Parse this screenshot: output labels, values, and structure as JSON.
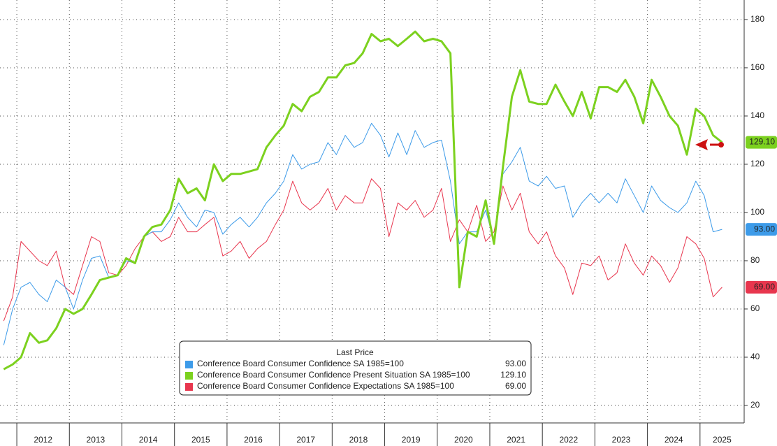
{
  "chart_data": {
    "type": "line",
    "legend_title": "Last Price",
    "x": [
      2011.75,
      2011.92,
      2012.08,
      2012.25,
      2012.42,
      2012.58,
      2012.75,
      2012.92,
      2013.08,
      2013.25,
      2013.42,
      2013.58,
      2013.75,
      2013.92,
      2014.08,
      2014.25,
      2014.42,
      2014.58,
      2014.75,
      2014.92,
      2015.08,
      2015.25,
      2015.42,
      2015.58,
      2015.75,
      2015.92,
      2016.08,
      2016.25,
      2016.42,
      2016.58,
      2016.75,
      2016.92,
      2017.08,
      2017.25,
      2017.42,
      2017.58,
      2017.75,
      2017.92,
      2018.08,
      2018.25,
      2018.42,
      2018.58,
      2018.75,
      2018.92,
      2019.08,
      2019.25,
      2019.42,
      2019.58,
      2019.75,
      2019.92,
      2020.08,
      2020.25,
      2020.42,
      2020.58,
      2020.75,
      2020.92,
      2021.08,
      2021.25,
      2021.42,
      2021.58,
      2021.75,
      2021.92,
      2022.08,
      2022.25,
      2022.42,
      2022.58,
      2022.75,
      2022.92,
      2023.08,
      2023.25,
      2023.42,
      2023.58,
      2023.75,
      2023.92,
      2024.08,
      2024.25,
      2024.42,
      2024.58,
      2024.75,
      2024.92,
      2025.08,
      2025.25,
      2025.42
    ],
    "series": [
      {
        "name": "Conference Board Consumer Confidence SA 1985=100",
        "color": "#3d9be9",
        "width": 1,
        "last": {
          "value": 93,
          "label": "93.00"
        },
        "values": [
          45,
          60,
          69,
          71,
          66,
          63,
          72,
          69,
          60,
          72,
          81,
          82,
          73,
          74,
          80,
          79,
          90,
          92,
          92,
          97,
          104,
          98,
          94,
          101,
          100,
          91,
          95,
          98,
          94,
          98,
          104,
          108,
          113,
          124,
          118,
          120,
          121,
          129,
          124,
          132,
          127,
          129,
          137,
          132,
          123,
          133,
          124,
          134,
          127,
          129,
          130,
          113,
          87,
          92,
          92,
          101,
          88,
          116,
          121,
          127,
          113,
          111,
          115,
          110,
          111,
          98,
          104,
          108,
          104,
          108,
          104,
          114,
          107,
          100,
          111,
          105,
          102,
          100,
          104,
          113,
          107,
          92,
          93
        ]
      },
      {
        "name": "Conference Board Consumer Confidence Present Situation SA 1985=100",
        "color": "#7cd11f",
        "width": 3,
        "last": {
          "value": 129.1,
          "label": "129.10"
        },
        "values": [
          35,
          37,
          40,
          50,
          46,
          47,
          52,
          60,
          58,
          60,
          66,
          72,
          73,
          74,
          81,
          79,
          90,
          94,
          95,
          101,
          114,
          108,
          110,
          105,
          120,
          113,
          116,
          116,
          117,
          118,
          127,
          132,
          136,
          145,
          142,
          148,
          150,
          156,
          156,
          161,
          162,
          166,
          174,
          171,
          172,
          169,
          172,
          175,
          171,
          172,
          171,
          166,
          69,
          92,
          90,
          105,
          87,
          119,
          148,
          159,
          146,
          145,
          145,
          153,
          146,
          140,
          150,
          139,
          152,
          152,
          150,
          155,
          148,
          137,
          155,
          148,
          140,
          136,
          124,
          143,
          140,
          132,
          129.1
        ]
      },
      {
        "name": "Conference Board Consumer Confidence Expectations SA 1985=100",
        "color": "#e8364e",
        "width": 1,
        "last": {
          "value": 69,
          "label": "69.00"
        },
        "values": [
          55,
          65,
          88,
          84,
          80,
          78,
          84,
          69,
          66,
          78,
          90,
          88,
          75,
          74,
          78,
          85,
          90,
          92,
          88,
          90,
          98,
          92,
          92,
          95,
          98,
          82,
          84,
          88,
          81,
          85,
          88,
          95,
          101,
          113,
          104,
          101,
          104,
          110,
          101,
          107,
          104,
          104,
          114,
          110,
          90,
          104,
          101,
          105,
          98,
          101,
          110,
          88,
          97,
          92,
          103,
          88,
          92,
          111,
          101,
          108,
          92,
          87,
          92,
          82,
          77,
          66,
          79,
          78,
          82,
          72,
          75,
          87,
          79,
          74,
          82,
          78,
          71,
          77,
          90,
          87,
          81,
          65,
          69
        ]
      }
    ],
    "xlim": [
      2011.68,
      2025.84
    ],
    "xticks": [
      2012,
      2013,
      2014,
      2015,
      2016,
      2017,
      2018,
      2019,
      2020,
      2021,
      2022,
      2023,
      2024,
      2025
    ],
    "ylim": [
      12.75,
      188.1
    ],
    "yticks": [
      20,
      40,
      60,
      80,
      100,
      120,
      140,
      160,
      180
    ],
    "grid": true
  }
}
